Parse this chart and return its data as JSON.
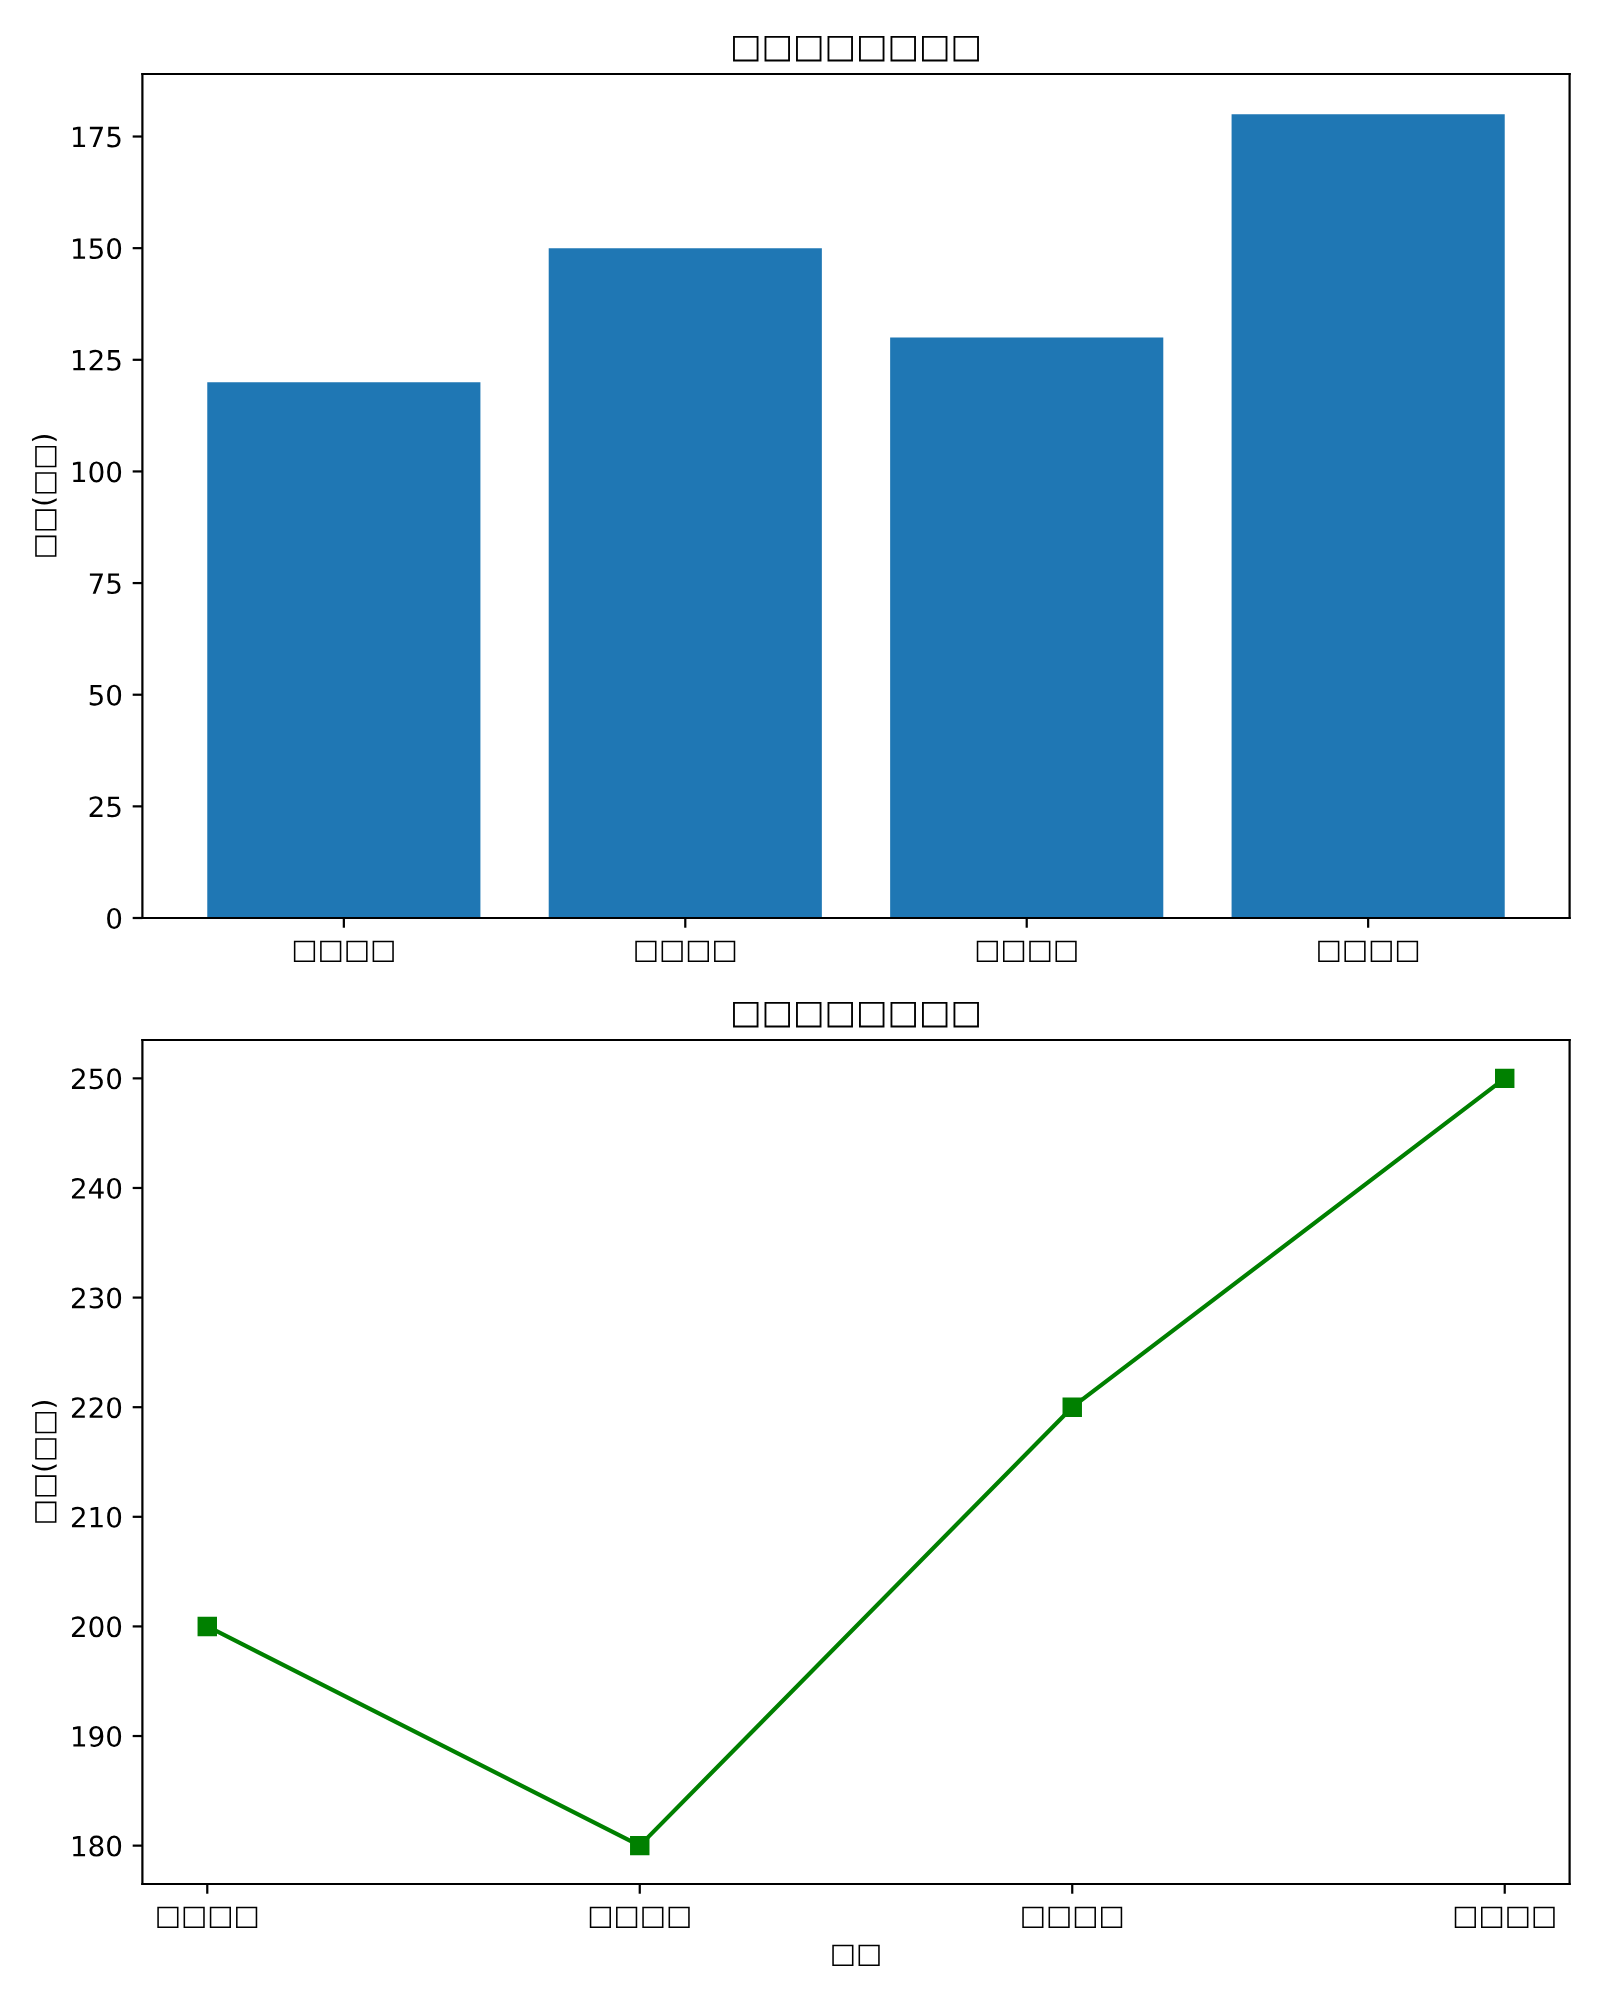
{
  "chart_data": [
    {
      "type": "bar",
      "title": "□□□□□□□□",
      "ylabel": "□□(□□)",
      "categories": [
        "□□□□",
        "□□□□",
        "□□□□",
        "□□□□"
      ],
      "values": [
        120,
        150,
        130,
        180
      ],
      "color": "#1f77b4",
      "ylim": [
        0,
        189
      ],
      "yticks": [
        0,
        25,
        50,
        75,
        100,
        125,
        150,
        175
      ],
      "grid": false,
      "legend": false
    },
    {
      "type": "line",
      "title": "□□□□□□□□",
      "xlabel": "□□",
      "ylabel": "□□(□□)",
      "categories": [
        "□□□□",
        "□□□□",
        "□□□□",
        "□□□□"
      ],
      "values": [
        200,
        180,
        220,
        250
      ],
      "color": "#008000",
      "marker": "square",
      "line_style": "solid",
      "ylim": [
        176.5,
        253.5
      ],
      "yticks": [
        180,
        190,
        200,
        210,
        220,
        230,
        240,
        250
      ],
      "grid": false,
      "legend": false
    }
  ]
}
